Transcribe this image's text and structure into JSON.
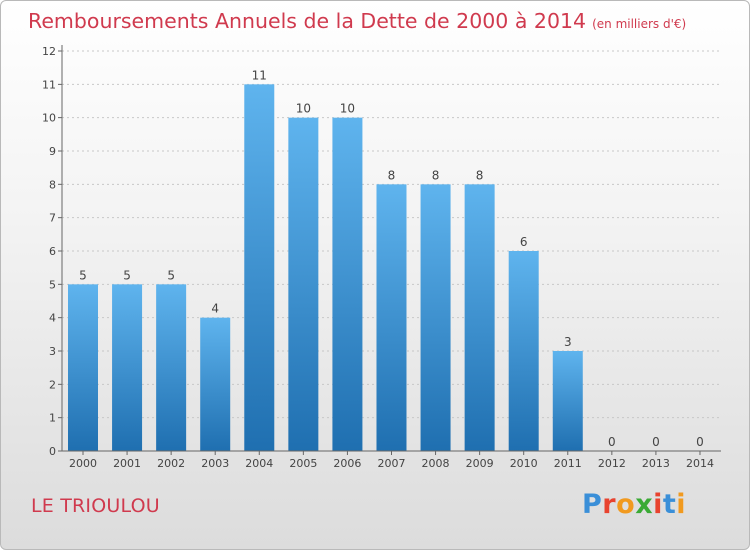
{
  "title": "Remboursements Annuels de la Dette de 2000 à 2014",
  "units_note": "(en milliers d'€)",
  "commune": "LE TRIOULOU",
  "logo": {
    "text": "Proxiti",
    "letter_colors": [
      "#3a8fd8",
      "#e8432f",
      "#f19a1f",
      "#3aaa35",
      "#e8432f",
      "#3a8fd8",
      "#f19a1f"
    ]
  },
  "colors": {
    "title": "#d03a4e",
    "bar_top": "#5fb4ee",
    "bar_bottom": "#1f6fb0",
    "axis": "#666666",
    "grid": "#c7c7c7"
  },
  "chart_data": {
    "type": "bar",
    "categories": [
      "2000",
      "2001",
      "2002",
      "2003",
      "2004",
      "2005",
      "2006",
      "2007",
      "2008",
      "2009",
      "2010",
      "2011",
      "2012",
      "2013",
      "2014"
    ],
    "values": [
      5,
      5,
      5,
      4,
      11,
      10,
      10,
      8,
      8,
      8,
      6,
      3,
      0,
      0,
      0
    ],
    "ylim": [
      0,
      12
    ],
    "yticks": [
      "0",
      "1",
      "2",
      "3",
      "4",
      "5",
      "6",
      "7",
      "8",
      "9",
      "10",
      "11",
      "12"
    ],
    "grid": true
  }
}
